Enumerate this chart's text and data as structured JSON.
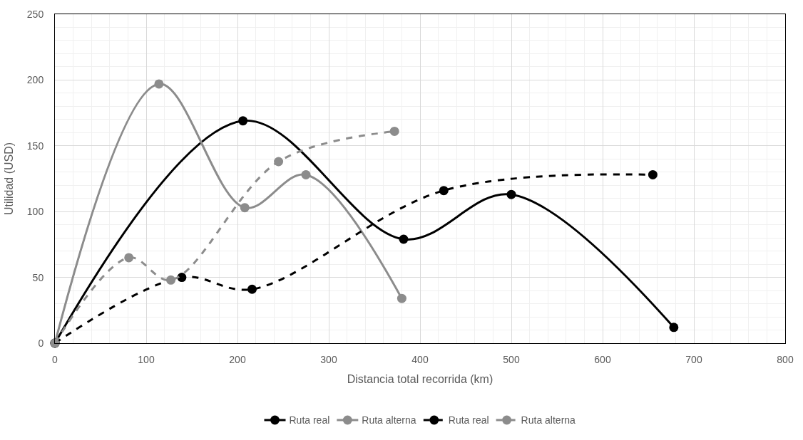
{
  "chart_data": {
    "type": "line",
    "xlabel": "Distancia total recorrida (km)",
    "ylabel": "Utilidad (USD)",
    "series": [
      {
        "name": "Ruta real",
        "color": "#000000",
        "line_style": "solid",
        "x": [
          0,
          206,
          382,
          500,
          678
        ],
        "values": [
          0,
          169,
          79,
          113,
          12
        ]
      },
      {
        "name": "Ruta alterna",
        "color": "#8c8c8c",
        "line_style": "solid",
        "x": [
          0,
          114,
          208,
          275,
          380
        ],
        "values": [
          0,
          197,
          103,
          128,
          34
        ]
      },
      {
        "name": "Ruta real",
        "color": "#000000",
        "line_style": "dashed",
        "x": [
          0,
          139,
          216,
          426,
          655
        ],
        "values": [
          0,
          50,
          41,
          116,
          128
        ]
      },
      {
        "name": "Ruta alterna",
        "color": "#8c8c8c",
        "line_style": "dashed",
        "x": [
          0,
          81,
          127,
          245,
          372
        ],
        "values": [
          0,
          65,
          48,
          138,
          161
        ]
      }
    ],
    "xlim": [
      0,
      800
    ],
    "xticks": [
      0,
      100,
      200,
      300,
      400,
      500,
      600,
      700,
      800
    ],
    "ylim": [
      0,
      250
    ],
    "yticks": [
      0,
      50,
      100,
      150,
      200,
      250
    ],
    "grid": true,
    "legend": "bottom",
    "marker": "circle"
  }
}
